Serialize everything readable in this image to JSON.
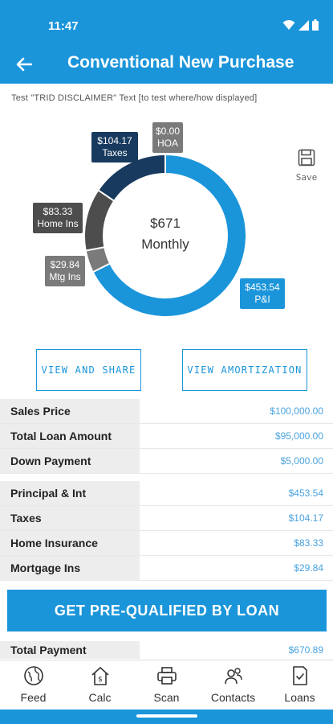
{
  "status": {
    "time": "11:47"
  },
  "header": {
    "title": "Conventional New Purchase"
  },
  "disclaimer": "Test \"TRID DISCLAIMER\" Text [to test where/how displayed]",
  "save_label": "Save",
  "summary": {
    "amount": "$671",
    "period": "Monthly"
  },
  "chart_data": {
    "type": "pie",
    "donut": true,
    "categories": [
      "P&I",
      "Mtg Ins",
      "Home Ins",
      "Taxes",
      "HOA"
    ],
    "values": [
      453.54,
      29.84,
      83.33,
      104.17,
      0.0
    ],
    "colors": [
      "#1b95da",
      "#7a7a7a",
      "#4d4d4d",
      "#173a5e",
      "#7a7a7a"
    ],
    "labels": [
      {
        "amount": "$453.54",
        "name": "P&I"
      },
      {
        "amount": "$29.84",
        "name": "Mtg Ins"
      },
      {
        "amount": "$83.33",
        "name": "Home Ins"
      },
      {
        "amount": "$104.17",
        "name": "Taxes"
      },
      {
        "amount": "$0.00",
        "name": "HOA"
      }
    ]
  },
  "buttons": {
    "share": "VIEW AND SHARE",
    "amortization": "VIEW AMORTIZATION",
    "prequalify": "GET PRE-QUALIFIED BY LOAN"
  },
  "loan_table": [
    {
      "label": "Sales Price",
      "value": "$100,000.00"
    },
    {
      "label": "Total Loan Amount",
      "value": "$95,000.00"
    },
    {
      "label": "Down Payment",
      "value": "$5,000.00"
    }
  ],
  "payment_table": [
    {
      "label": "Principal & Int",
      "value": "$453.54"
    },
    {
      "label": "Taxes",
      "value": "$104.17"
    },
    {
      "label": "Home Insurance",
      "value": "$83.33"
    },
    {
      "label": "Mortgage Ins",
      "value": "$29.84"
    }
  ],
  "total": {
    "label": "Total Payment",
    "value": "$670.89"
  },
  "nav": [
    {
      "label": "Feed",
      "icon": "globe-icon"
    },
    {
      "label": "Calc",
      "icon": "calc-house-icon"
    },
    {
      "label": "Scan",
      "icon": "printer-icon"
    },
    {
      "label": "Contacts",
      "icon": "contacts-icon"
    },
    {
      "label": "Loans",
      "icon": "loan-doc-icon"
    }
  ]
}
